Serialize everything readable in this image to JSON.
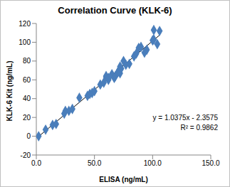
{
  "chart_data": {
    "type": "scatter",
    "title": "Correlation Curve (KLK-6)",
    "x_label": "ELISA (ng/mL)",
    "y_label": "KLK-6 Kit (ng/mL)",
    "x": [
      2,
      8,
      14,
      17,
      24,
      25,
      28,
      31,
      37,
      44,
      46,
      48,
      50,
      55,
      58,
      60,
      60,
      62,
      62,
      65,
      67,
      68,
      70,
      72,
      71,
      73,
      72,
      75,
      77,
      80,
      84,
      86,
      88,
      90,
      93,
      95,
      100,
      101,
      101,
      104,
      106
    ],
    "values": [
      0,
      7,
      12,
      13,
      24,
      27,
      27,
      29,
      41,
      43,
      45,
      46,
      48,
      55,
      57,
      63,
      64,
      60,
      62,
      66,
      62,
      64,
      68,
      67,
      70,
      72,
      74,
      80,
      76,
      77,
      85,
      88,
      94,
      95,
      89,
      92,
      102,
      103,
      113,
      98,
      112
    ],
    "color": "#4a7ebb",
    "marker": "diamond",
    "xlim": [
      0,
      150
    ],
    "xticks": [
      {
        "value": 0,
        "label": "0.0"
      },
      {
        "value": 50,
        "label": "50.0"
      },
      {
        "value": 100,
        "label": "100.0"
      },
      {
        "value": 150,
        "label": "150.0"
      }
    ],
    "ylim": [
      -20,
      120
    ],
    "yticks": [
      -20,
      0,
      20,
      40,
      60,
      80,
      100,
      120
    ],
    "grid": false,
    "trendline": {
      "slope": 1.0375,
      "intercept": -2.3575
    },
    "annotations": [
      "y = 1.0375x - 2.3575",
      "R² = 0.9862"
    ]
  }
}
